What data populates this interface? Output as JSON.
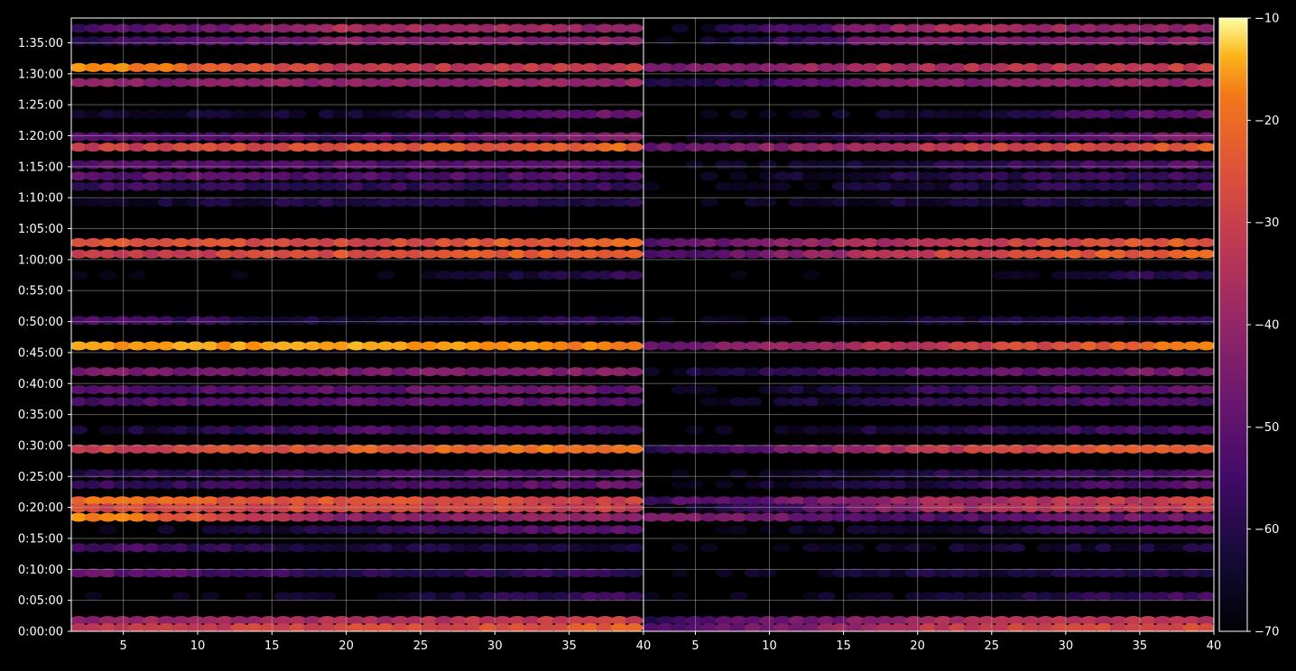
{
  "chart_data": {
    "type": "heatmap",
    "title": "",
    "xlabel": "",
    "ylabel": "",
    "background": "#000000",
    "colormap": "inferno",
    "grid": true,
    "panels": [
      {
        "id": "left",
        "xlim": [
          1.5,
          40
        ],
        "x_ticks": [
          5,
          10,
          15,
          20,
          25,
          30,
          35,
          40
        ]
      },
      {
        "id": "right",
        "xlim": [
          1.5,
          40
        ],
        "x_ticks": [
          5,
          10,
          15,
          20,
          25,
          30,
          35,
          40
        ]
      }
    ],
    "y_axis": {
      "unit": "seconds",
      "lim_seconds": [
        0,
        5940
      ],
      "ticks": [
        {
          "seconds": 0,
          "label": "0:00:00"
        },
        {
          "seconds": 300,
          "label": "0:05:00"
        },
        {
          "seconds": 600,
          "label": "0:10:00"
        },
        {
          "seconds": 900,
          "label": "0:15:00"
        },
        {
          "seconds": 1200,
          "label": "0:20:00"
        },
        {
          "seconds": 1500,
          "label": "0:25:00"
        },
        {
          "seconds": 1800,
          "label": "0:30:00"
        },
        {
          "seconds": 2100,
          "label": "0:35:00"
        },
        {
          "seconds": 2400,
          "label": "0:40:00"
        },
        {
          "seconds": 2700,
          "label": "0:45:00"
        },
        {
          "seconds": 3000,
          "label": "0:50:00"
        },
        {
          "seconds": 3300,
          "label": "0:55:00"
        },
        {
          "seconds": 3600,
          "label": "1:00:00"
        },
        {
          "seconds": 3900,
          "label": "1:05:00"
        },
        {
          "seconds": 4200,
          "label": "1:10:00"
        },
        {
          "seconds": 4500,
          "label": "1:15:00"
        },
        {
          "seconds": 4800,
          "label": "1:20:00"
        },
        {
          "seconds": 5100,
          "label": "1:25:00"
        },
        {
          "seconds": 5400,
          "label": "1:30:00"
        },
        {
          "seconds": 5700,
          "label": "1:35:00"
        }
      ]
    },
    "colorbar": {
      "range": [
        -70,
        -10
      ],
      "ticks": [
        {
          "value": -10,
          "label": "−10"
        },
        {
          "value": -20,
          "label": "−20"
        },
        {
          "value": -30,
          "label": "−30"
        },
        {
          "value": -40,
          "label": "−40"
        },
        {
          "value": -50,
          "label": "−50"
        },
        {
          "value": -60,
          "label": "−60"
        },
        {
          "value": -70,
          "label": "−70"
        }
      ]
    },
    "bands": [
      {
        "t": 5720,
        "left": [
          -62,
          -48,
          -48
        ],
        "right": [
          -70,
          -48,
          -48
        ]
      },
      {
        "t": 5840,
        "left": [
          -58,
          -42,
          -46
        ],
        "right": [
          -70,
          -44,
          -46
        ]
      },
      {
        "t": 5460,
        "left": [
          -24,
          -40,
          -38
        ],
        "right": [
          -50,
          -42,
          -38
        ]
      },
      {
        "t": 5315,
        "left": [
          -48,
          -46,
          -46
        ],
        "right": [
          -64,
          -48,
          -46
        ]
      },
      {
        "t": 5010,
        "left": [
          -64,
          -66,
          -50
        ],
        "right": [
          -70,
          -66,
          -52
        ]
      },
      {
        "t": 4790,
        "left": [
          -54,
          -58,
          -48
        ],
        "right": [
          -70,
          -60,
          -48
        ]
      },
      {
        "t": 4690,
        "left": [
          -38,
          -34,
          -30
        ],
        "right": [
          -54,
          -40,
          -32
        ]
      },
      {
        "t": 4520,
        "left": [
          -54,
          -56,
          -54
        ],
        "right": [
          -70,
          -62,
          -54
        ]
      },
      {
        "t": 4410,
        "left": [
          -54,
          -56,
          -56
        ],
        "right": [
          -70,
          -62,
          -58
        ]
      },
      {
        "t": 4310,
        "left": [
          -58,
          -60,
          -58
        ],
        "right": [
          -70,
          -64,
          -58
        ]
      },
      {
        "t": 4155,
        "left": [
          -66,
          -62,
          -62
        ],
        "right": [
          -70,
          -64,
          -62
        ]
      },
      {
        "t": 3765,
        "left": [
          -34,
          -36,
          -30
        ],
        "right": [
          -56,
          -40,
          -32
        ]
      },
      {
        "t": 3655,
        "left": [
          -40,
          -34,
          -30
        ],
        "right": [
          -58,
          -38,
          -30
        ]
      },
      {
        "t": 3450,
        "left": [
          -70,
          -70,
          -60
        ],
        "right": [
          -70,
          -70,
          -60
        ]
      },
      {
        "t": 3010,
        "left": [
          -56,
          -66,
          -60
        ],
        "right": [
          -70,
          -66,
          -60
        ]
      },
      {
        "t": 2765,
        "left": [
          -24,
          -22,
          -28
        ],
        "right": [
          -52,
          -40,
          -28
        ]
      },
      {
        "t": 2515,
        "left": [
          -50,
          -50,
          -48
        ],
        "right": [
          -66,
          -54,
          -50
        ]
      },
      {
        "t": 2340,
        "left": [
          -56,
          -54,
          -52
        ],
        "right": [
          -70,
          -60,
          -52
        ]
      },
      {
        "t": 2225,
        "left": [
          -56,
          -54,
          -54
        ],
        "right": [
          -70,
          -60,
          -56
        ]
      },
      {
        "t": 1950,
        "left": [
          -66,
          -56,
          -56
        ],
        "right": [
          -70,
          -62,
          -56
        ]
      },
      {
        "t": 1765,
        "left": [
          -38,
          -32,
          -28
        ],
        "right": [
          -62,
          -40,
          -30
        ]
      },
      {
        "t": 1525,
        "left": [
          -62,
          -58,
          -54
        ],
        "right": [
          -70,
          -62,
          -56
        ]
      },
      {
        "t": 1420,
        "left": [
          -60,
          -58,
          -52
        ],
        "right": [
          -70,
          -62,
          -54
        ]
      },
      {
        "t": 1265,
        "left": [
          -30,
          -34,
          -38
        ],
        "right": [
          -58,
          -44,
          -38
        ]
      },
      {
        "t": 1195,
        "left": [
          -36,
          -36,
          -38
        ],
        "right": [
          -70,
          -44,
          -38
        ]
      },
      {
        "t": 1105,
        "left": [
          -24,
          -48,
          -46
        ],
        "right": [
          -48,
          -56,
          -50
        ]
      },
      {
        "t": 985,
        "left": [
          -70,
          -62,
          -52
        ],
        "right": [
          -70,
          -66,
          -54
        ]
      },
      {
        "t": 810,
        "left": [
          -56,
          -64,
          -64
        ],
        "right": [
          -70,
          -66,
          -64
        ]
      },
      {
        "t": 565,
        "left": [
          -52,
          -62,
          -60
        ],
        "right": [
          -70,
          -64,
          -62
        ]
      },
      {
        "t": 340,
        "left": [
          -70,
          -66,
          -58
        ],
        "right": [
          -70,
          -66,
          -58
        ]
      },
      {
        "t": 105,
        "left": [
          -46,
          -42,
          -38
        ],
        "right": [
          -60,
          -44,
          -40
        ]
      },
      {
        "t": 35,
        "left": [
          -40,
          -36,
          -32
        ],
        "right": [
          -58,
          -40,
          -34
        ]
      }
    ]
  }
}
